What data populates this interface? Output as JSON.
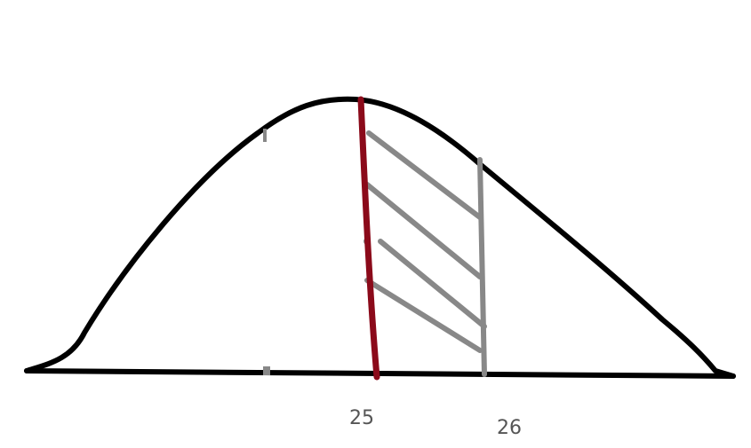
{
  "axis_labels": [
    "25",
    "26"
  ]
}
